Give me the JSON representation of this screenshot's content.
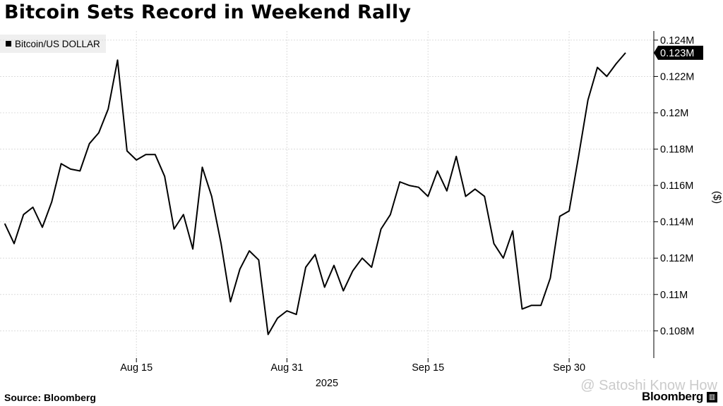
{
  "title": "Bitcoin Sets Record in Weekend Rally",
  "source": "Source: Bloomberg",
  "brand": "Bloomberg",
  "watermark": "@ Satoshi Know How",
  "chart_data": {
    "type": "line",
    "title": "Bitcoin Sets Record in Weekend Rally",
    "ylabel": "($)",
    "xlabel": "",
    "year_label": "2025",
    "legend": {
      "entries": [
        "Bitcoin/US DOLLAR"
      ],
      "placement": "top-left"
    },
    "grid": true,
    "ylim": [
      106500,
      124500
    ],
    "y_ticks": [
      {
        "value": 108000,
        "label": "0.108M"
      },
      {
        "value": 110000,
        "label": "0.11M"
      },
      {
        "value": 112000,
        "label": "0.112M"
      },
      {
        "value": 114000,
        "label": "0.114M"
      },
      {
        "value": 116000,
        "label": "0.116M"
      },
      {
        "value": 118000,
        "label": "0.118M"
      },
      {
        "value": 120000,
        "label": "0.12M"
      },
      {
        "value": 122000,
        "label": "0.122M"
      },
      {
        "value": 124000,
        "label": "0.124M"
      }
    ],
    "x_ticks": [
      {
        "date": "2025-08-15",
        "label": "Aug 15"
      },
      {
        "date": "2025-08-31",
        "label": "Aug 31"
      },
      {
        "date": "2025-09-15",
        "label": "Sep 15"
      },
      {
        "date": "2025-09-30",
        "label": "Sep 30"
      }
    ],
    "last_value_label": "0.123M",
    "series": [
      {
        "color": "#000000",
        "x": [
          "2025-08-01",
          "2025-08-02",
          "2025-08-03",
          "2025-08-04",
          "2025-08-05",
          "2025-08-06",
          "2025-08-07",
          "2025-08-08",
          "2025-08-09",
          "2025-08-10",
          "2025-08-11",
          "2025-08-12",
          "2025-08-13",
          "2025-08-14",
          "2025-08-15",
          "2025-08-16",
          "2025-08-17",
          "2025-08-18",
          "2025-08-19",
          "2025-08-20",
          "2025-08-21",
          "2025-08-22",
          "2025-08-23",
          "2025-08-24",
          "2025-08-25",
          "2025-08-26",
          "2025-08-27",
          "2025-08-28",
          "2025-08-29",
          "2025-08-30",
          "2025-08-31",
          "2025-09-01",
          "2025-09-02",
          "2025-09-03",
          "2025-09-04",
          "2025-09-05",
          "2025-09-06",
          "2025-09-07",
          "2025-09-08",
          "2025-09-09",
          "2025-09-10",
          "2025-09-11",
          "2025-09-12",
          "2025-09-13",
          "2025-09-14",
          "2025-09-15",
          "2025-09-16",
          "2025-09-17",
          "2025-09-18",
          "2025-09-19",
          "2025-09-20",
          "2025-09-21",
          "2025-09-22",
          "2025-09-23",
          "2025-09-24",
          "2025-09-25",
          "2025-09-26",
          "2025-09-27",
          "2025-09-28",
          "2025-09-29",
          "2025-09-30",
          "2025-10-01",
          "2025-10-02",
          "2025-10-03",
          "2025-10-04",
          "2025-10-05",
          "2025-10-06"
        ],
        "values": [
          113900,
          112800,
          114400,
          114800,
          113700,
          115100,
          117200,
          116900,
          116800,
          118300,
          118900,
          120200,
          122900,
          117900,
          117400,
          117700,
          117700,
          116500,
          113600,
          114400,
          112500,
          117000,
          115400,
          112800,
          109600,
          111400,
          112400,
          111900,
          107800,
          108700,
          109100,
          108900,
          111500,
          112200,
          110400,
          111600,
          110200,
          111300,
          112000,
          111500,
          113600,
          114400,
          116200,
          116000,
          115900,
          115400,
          116800,
          115700,
          117600,
          115400,
          115800,
          115400,
          112800,
          112000,
          113500,
          109200,
          109400,
          109400,
          110900,
          114300,
          114600,
          117600,
          120700,
          122500,
          122000,
          122700,
          123300
        ]
      }
    ]
  }
}
